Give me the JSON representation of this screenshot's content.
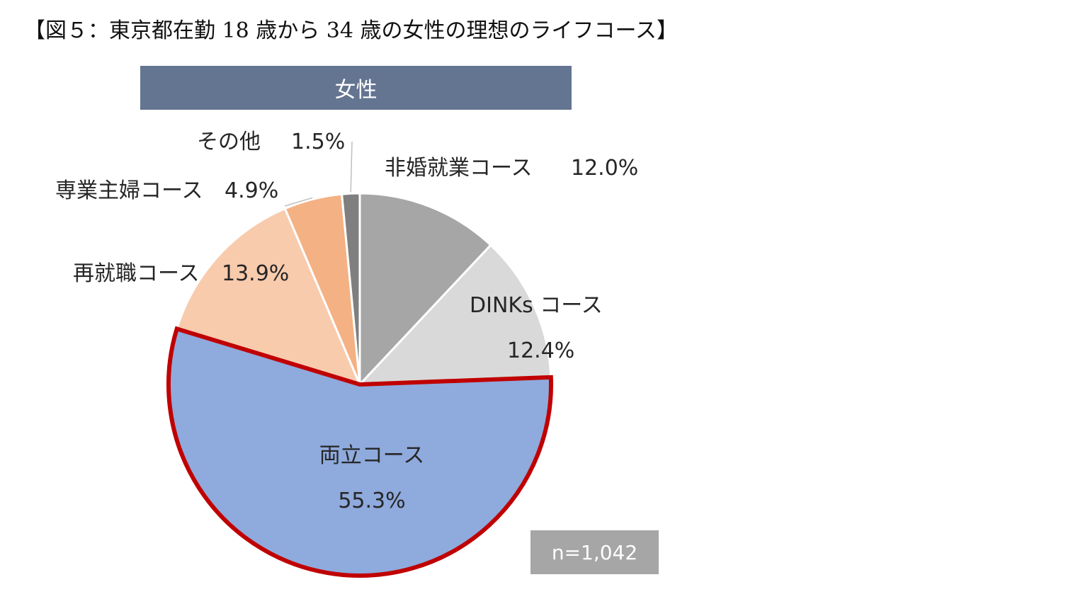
{
  "figure_title": "【図５：東京都在勤 18 歳から 34 歳の女性の理想のライフコース】",
  "chart_data": {
    "type": "pie",
    "title": "女性",
    "note": "n=1,042",
    "highlighted": "両立コース",
    "slices": [
      {
        "label": "非婚就業コース",
        "value_label": "12.0%",
        "value": 12.0,
        "color": "#a6a6a6"
      },
      {
        "label": "DINKs コース",
        "value_label": "12.4%",
        "value": 12.4,
        "color": "#d9d9d9"
      },
      {
        "label": "両立コース",
        "value_label": "55.3%",
        "value": 55.3,
        "color": "#8faadc",
        "outline": "#c00000"
      },
      {
        "label": "再就職コース",
        "value_label": "13.9%",
        "value": 13.9,
        "color": "#f8cbad"
      },
      {
        "label": "専業主婦コース",
        "value_label": "4.9%",
        "value": 4.9,
        "color": "#f4b183"
      },
      {
        "label": "その他",
        "value_label": "1.5%",
        "value": 1.5,
        "color": "#7f7f7f"
      }
    ]
  }
}
